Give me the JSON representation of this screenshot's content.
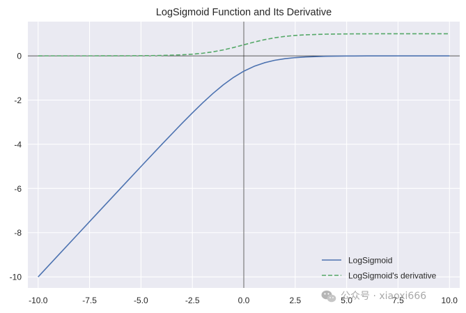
{
  "chart_data": {
    "type": "line",
    "title": "LogSigmoid Function and Its Derivative",
    "xlabel": "",
    "ylabel": "",
    "xlim": [
      -10.5,
      10.5
    ],
    "ylim": [
      -10.5,
      1.55
    ],
    "x_ticks": [
      -10.0,
      -7.5,
      -5.0,
      -2.5,
      0.0,
      2.5,
      5.0,
      7.5,
      10.0
    ],
    "x_tick_labels": [
      "-10.0",
      "-7.5",
      "-5.0",
      "-2.5",
      "0.0",
      "2.5",
      "5.0",
      "7.5",
      "10.0"
    ],
    "y_ticks": [
      0,
      -2,
      -4,
      -6,
      -8,
      -10
    ],
    "y_tick_labels": [
      "0",
      "-2",
      "-4",
      "-6",
      "-8",
      "-10"
    ],
    "grid": true,
    "background": "#eaeaf2",
    "axis_lines": {
      "x": 0,
      "y": 0
    },
    "legend_position": "lower-right",
    "series": [
      {
        "name": "LogSigmoid",
        "color": "#4c72b0",
        "style": "solid",
        "x": [
          -10,
          -9,
          -8,
          -7,
          -6,
          -5,
          -4,
          -3,
          -2.5,
          -2,
          -1.5,
          -1,
          -0.5,
          0,
          0.5,
          1,
          1.5,
          2,
          2.5,
          3,
          4,
          5,
          6,
          7,
          8,
          9,
          10
        ],
        "y": [
          -10.0,
          -9.0001,
          -8.0003,
          -7.0009,
          -6.0025,
          -5.0067,
          -4.0181,
          -3.0486,
          -2.5789,
          -2.1269,
          -1.7014,
          -1.3133,
          -0.9741,
          -0.6931,
          -0.4741,
          -0.3133,
          -0.2014,
          -0.1269,
          -0.0789,
          -0.0486,
          -0.0181,
          -0.0067,
          -0.0025,
          -0.0009,
          -0.0003,
          -0.0001,
          0.0
        ]
      },
      {
        "name": "LogSigmoid's derivative",
        "color": "#55a868",
        "style": "dashed",
        "x": [
          -10,
          -9,
          -8,
          -7,
          -6,
          -5,
          -4,
          -3,
          -2.5,
          -2,
          -1.5,
          -1,
          -0.5,
          0,
          0.5,
          1,
          1.5,
          2,
          2.5,
          3,
          4,
          5,
          6,
          7,
          8,
          9,
          10
        ],
        "y": [
          0.0,
          0.0001,
          0.0003,
          0.0009,
          0.0025,
          0.0067,
          0.018,
          0.0474,
          0.0759,
          0.1192,
          0.1824,
          0.2689,
          0.3775,
          0.5,
          0.6225,
          0.7311,
          0.8176,
          0.8808,
          0.9241,
          0.9526,
          0.982,
          0.9933,
          0.9975,
          0.9991,
          0.9997,
          0.9999,
          1.0
        ]
      }
    ]
  },
  "watermark": {
    "text": "公众号 · xiaoxi666",
    "icon": "wechat-icon"
  }
}
